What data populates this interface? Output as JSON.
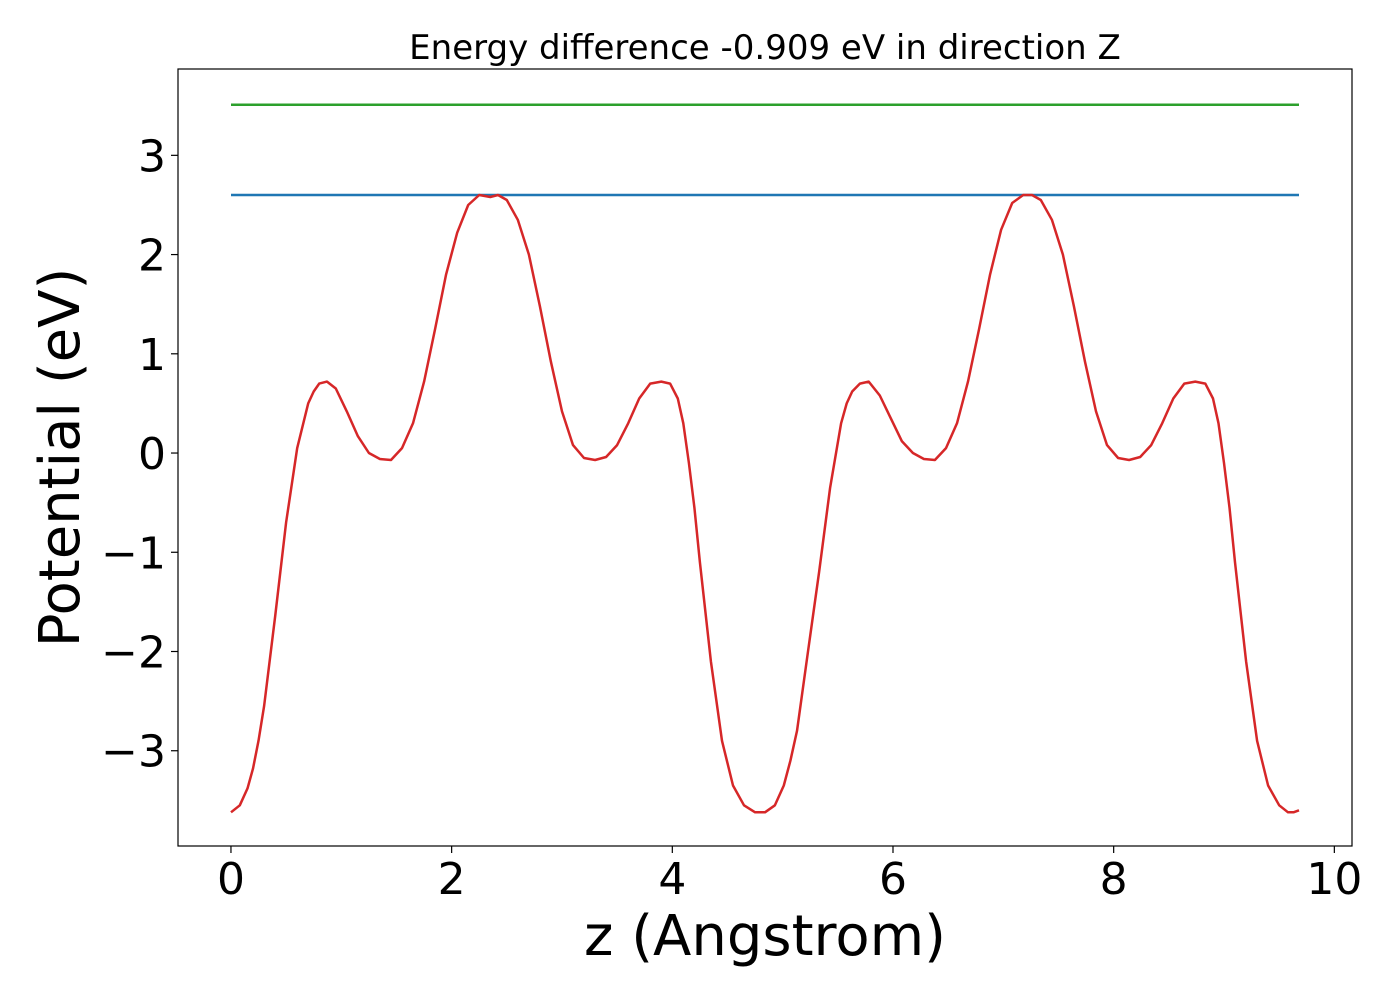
{
  "chart_data": {
    "type": "line",
    "title": "Energy difference -0.909 eV in direction Z",
    "xlabel": "z (Angstrom)",
    "ylabel": "Potential (eV)",
    "xlim": [
      -0.48,
      10.16
    ],
    "ylim": [
      -3.96,
      3.87
    ],
    "xticks": [
      0,
      2,
      4,
      6,
      8,
      10
    ],
    "yticks": [
      -3,
      -2,
      -1,
      0,
      1,
      2,
      3
    ],
    "xtick_labels": [
      "0",
      "2",
      "4",
      "6",
      "8",
      "10"
    ],
    "ytick_labels": [
      "−3",
      "−2",
      "−1",
      "0",
      "1",
      "2",
      "3"
    ],
    "grid": false,
    "series": [
      {
        "color": "#2ca02c",
        "x": [
          0,
          9.68
        ],
        "y": [
          3.51,
          3.51
        ]
      },
      {
        "color": "#1f77b4",
        "x": [
          0,
          9.68
        ],
        "y": [
          2.6,
          2.6
        ]
      },
      {
        "color": "#d62728",
        "x": [
          0.0,
          0.08,
          0.15,
          0.2,
          0.25,
          0.3,
          0.4,
          0.5,
          0.6,
          0.7,
          0.75,
          0.8,
          0.87,
          0.95,
          1.05,
          1.15,
          1.25,
          1.35,
          1.45,
          1.55,
          1.65,
          1.75,
          1.85,
          1.95,
          2.05,
          2.15,
          2.25,
          2.35,
          2.42,
          2.5,
          2.6,
          2.7,
          2.8,
          2.9,
          3.0,
          3.1,
          3.2,
          3.3,
          3.4,
          3.5,
          3.6,
          3.7,
          3.8,
          3.9,
          3.98,
          4.05,
          4.1,
          4.15,
          4.2,
          4.25,
          4.35,
          4.45,
          4.55,
          4.65,
          4.75,
          4.84,
          4.93,
          5.01,
          5.07,
          5.13,
          5.23,
          5.33,
          5.43,
          5.53,
          5.58,
          5.63,
          5.7,
          5.78,
          5.88,
          5.98,
          6.08,
          6.18,
          6.28,
          6.38,
          6.48,
          6.58,
          6.68,
          6.78,
          6.88,
          6.98,
          7.08,
          7.18,
          7.26,
          7.34,
          7.44,
          7.54,
          7.64,
          7.74,
          7.84,
          7.94,
          8.04,
          8.14,
          8.24,
          8.34,
          8.44,
          8.54,
          8.64,
          8.74,
          8.83,
          8.9,
          8.95,
          9.0,
          9.05,
          9.1,
          9.2,
          9.3,
          9.4,
          9.5,
          9.58,
          9.63,
          9.68
        ],
        "y": [
          -3.62,
          -3.55,
          -3.38,
          -3.18,
          -2.9,
          -2.55,
          -1.65,
          -0.7,
          0.05,
          0.5,
          0.62,
          0.7,
          0.72,
          0.65,
          0.42,
          0.17,
          0.0,
          -0.06,
          -0.07,
          0.05,
          0.3,
          0.72,
          1.25,
          1.8,
          2.22,
          2.5,
          2.6,
          2.58,
          2.6,
          2.55,
          2.35,
          2.0,
          1.48,
          0.92,
          0.42,
          0.08,
          -0.05,
          -0.07,
          -0.04,
          0.08,
          0.3,
          0.55,
          0.7,
          0.72,
          0.7,
          0.55,
          0.3,
          -0.1,
          -0.55,
          -1.1,
          -2.1,
          -2.9,
          -3.35,
          -3.55,
          -3.62,
          -3.62,
          -3.55,
          -3.35,
          -3.1,
          -2.8,
          -2.0,
          -1.2,
          -0.35,
          0.3,
          0.5,
          0.62,
          0.7,
          0.72,
          0.58,
          0.35,
          0.12,
          0.0,
          -0.06,
          -0.07,
          0.05,
          0.3,
          0.72,
          1.25,
          1.8,
          2.25,
          2.52,
          2.6,
          2.6,
          2.55,
          2.35,
          2.0,
          1.48,
          0.92,
          0.42,
          0.08,
          -0.05,
          -0.07,
          -0.04,
          0.08,
          0.3,
          0.55,
          0.7,
          0.72,
          0.7,
          0.55,
          0.3,
          -0.1,
          -0.55,
          -1.1,
          -2.1,
          -2.9,
          -3.35,
          -3.55,
          -3.62,
          -3.62,
          -3.6
        ]
      }
    ]
  }
}
